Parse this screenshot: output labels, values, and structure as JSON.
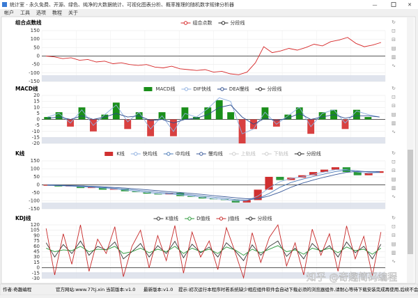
{
  "window": {
    "title": "统计室 - 永久免费、开源、绿色、纯净的大数据统计、可视化图表分析、概率推理的随机数字规律分析器",
    "menu": [
      "帐户",
      "工具",
      "选项",
      "教程",
      "关于"
    ]
  },
  "chart_data": [
    {
      "type": "line",
      "title": "组合点数线",
      "ylim": [
        -150,
        150
      ],
      "yticks": [
        150,
        100,
        50,
        0,
        -50,
        -100,
        -150
      ],
      "series": [
        {
          "name": "组合点数",
          "type": "line",
          "color": "#d62728",
          "values": [
            0,
            -5,
            -15,
            -10,
            -25,
            -20,
            -35,
            -30,
            -45,
            -40,
            -50,
            -55,
            -50,
            -65,
            -70,
            -60,
            -75,
            -80,
            -85,
            -80,
            -95,
            -90,
            -105,
            -110,
            -95,
            -40,
            55,
            20,
            30,
            45,
            35,
            50,
            70,
            60,
            85,
            95,
            110,
            75,
            55,
            65,
            80
          ]
        },
        {
          "name": "分段线",
          "type": "line",
          "color": "#222222"
        }
      ]
    },
    {
      "type": "macd",
      "title": "MACD线",
      "ylim": [
        -20,
        20
      ],
      "yticks": [
        20,
        15,
        10,
        5,
        0,
        -5,
        -10,
        -15,
        -20
      ],
      "series": [
        {
          "name": "MACD线",
          "type": "bar",
          "color": "#1a8f1a",
          "negative_color": "#d84040",
          "values": [
            2,
            6,
            -6,
            10,
            -10,
            4,
            14,
            -8,
            6,
            -14,
            6,
            -14,
            10,
            2,
            10,
            16,
            6,
            -20,
            -8,
            10,
            -6,
            4,
            10,
            -12,
            6,
            8,
            -8,
            8,
            2,
            0
          ]
        },
        {
          "name": "DIF快线",
          "type": "line",
          "color": "#8fb0e0",
          "values": [
            2,
            5,
            -3,
            8,
            -5,
            4,
            12,
            -2,
            6,
            -8,
            3,
            -10,
            5,
            2,
            9,
            18,
            15,
            -12,
            -8,
            6,
            -4,
            3,
            10,
            -6,
            5,
            8,
            -3,
            7,
            4,
            2
          ]
        },
        {
          "name": "DEA慢线",
          "type": "line",
          "color": "#2a4a8a",
          "values": [
            1,
            2,
            0,
            3,
            0,
            2,
            5,
            2,
            3,
            -1,
            0,
            -3,
            0,
            1,
            4,
            10,
            12,
            2,
            -4,
            1,
            -1,
            1,
            5,
            0,
            2,
            4,
            1,
            3,
            3,
            2
          ]
        },
        {
          "name": "分段线",
          "type": "line",
          "color": "#222222"
        }
      ]
    },
    {
      "type": "candlestick",
      "title": "K线",
      "ylim": [
        -150,
        150
      ],
      "yticks": [
        150,
        100,
        50,
        0,
        -50,
        -100,
        -150
      ],
      "series": [
        {
          "name": "K线",
          "type": "candlestick",
          "color": "#d03030",
          "down_color": "#2a9a3a",
          "open": [
            -5,
            0,
            -10,
            -5,
            -20,
            -15,
            -30,
            -25,
            -40,
            -45,
            -55,
            -60,
            -50,
            -70,
            -75,
            -85,
            -90,
            -95,
            -110,
            -95,
            -30,
            50,
            30,
            45,
            60,
            80,
            95,
            110,
            80,
            60,
            75
          ],
          "close": [
            0,
            -10,
            -5,
            -20,
            -15,
            -30,
            -25,
            -40,
            -45,
            -55,
            -60,
            -50,
            -70,
            -75,
            -85,
            -90,
            -95,
            -110,
            -95,
            -30,
            50,
            30,
            45,
            60,
            80,
            95,
            110,
            80,
            60,
            75,
            85
          ]
        },
        {
          "name": "快均线",
          "type": "line",
          "color": "#8fb0e0",
          "values": [
            -3,
            -5,
            -8,
            -12,
            -15,
            -20,
            -25,
            -32,
            -40,
            -48,
            -55,
            -57,
            -62,
            -70,
            -78,
            -86,
            -92,
            -100,
            -98,
            -70,
            -20,
            20,
            40,
            50,
            65,
            80,
            95,
            95,
            80,
            72,
            78
          ]
        },
        {
          "name": "中均线",
          "type": "line",
          "color": "#4a7ab8",
          "values": [
            -2,
            -4,
            -6,
            -9,
            -12,
            -16,
            -21,
            -27,
            -33,
            -40,
            -47,
            -52,
            -57,
            -63,
            -70,
            -77,
            -84,
            -92,
            -96,
            -85,
            -55,
            -15,
            15,
            35,
            52,
            68,
            83,
            92,
            88,
            80,
            78
          ]
        },
        {
          "name": "慢均线",
          "type": "line",
          "color": "#3a5a9a",
          "values": [
            0,
            -2,
            -4,
            -6,
            -9,
            -12,
            -16,
            -20,
            -25,
            -31,
            -37,
            -43,
            -48,
            -54,
            -60,
            -67,
            -74,
            -81,
            -87,
            -85,
            -70,
            -45,
            -15,
            10,
            30,
            48,
            64,
            78,
            84,
            83,
            82
          ]
        },
        {
          "name": "上轨线",
          "type": "line",
          "color": "#cccccc",
          "hidden": true
        },
        {
          "name": "下轨线",
          "type": "line",
          "color": "#cccccc",
          "hidden": true
        },
        {
          "name": "分段线",
          "type": "line",
          "color": "#222222"
        }
      ]
    },
    {
      "type": "line",
      "title": "KDJ线",
      "ylim": [
        -30,
        120
      ],
      "yticks": [
        120,
        105,
        90,
        75,
        60,
        45,
        30,
        15,
        0,
        -15,
        -30
      ],
      "series": [
        {
          "name": "K值线",
          "type": "line",
          "color": "#333333",
          "values": [
            70,
            30,
            65,
            40,
            75,
            35,
            60,
            50,
            72,
            25,
            45,
            68,
            30,
            62,
            40,
            74,
            28,
            66,
            42,
            58,
            30,
            70,
            48,
            20,
            64,
            35,
            60,
            75,
            32,
            55,
            25,
            68,
            45,
            62,
            30,
            72,
            42,
            60,
            25,
            66
          ]
        },
        {
          "name": "D值线",
          "type": "line",
          "color": "#2a9a3a",
          "values": [
            55,
            45,
            50,
            48,
            60,
            45,
            52,
            50,
            60,
            40,
            45,
            55,
            42,
            52,
            45,
            60,
            40,
            55,
            45,
            52,
            40,
            58,
            50,
            35,
            52,
            42,
            52,
            62,
            45,
            50,
            38,
            55,
            48,
            55,
            42,
            58,
            48,
            52,
            38,
            55
          ]
        },
        {
          "name": "J值线",
          "type": "line",
          "color": "#c62828",
          "values": [
            110,
            -20,
            95,
            10,
            120,
            -10,
            80,
            40,
            115,
            -25,
            60,
            105,
            0,
            90,
            20,
            118,
            -15,
            100,
            30,
            75,
            -5,
            112,
            45,
            -28,
            98,
            15,
            85,
            120,
            5,
            70,
            -20,
            108,
            35,
            95,
            -10,
            117,
            25,
            88,
            -22,
            100
          ]
        },
        {
          "name": "分段线",
          "type": "line",
          "color": "#222222"
        }
      ]
    }
  ],
  "watermark": "知乎 @奇趣简码编程",
  "status": [
    "作者:奇趣编程",
    "官方网站:www.77tj.xin",
    "当前版本:v1.0",
    "最新版本:v1.0",
    "提示:初次运行本程序时若系统缺少相应组件软件会自动下载必须的浏览器组件,请耐心等待下载安装完成再使用,后续不会再自动下载组件。"
  ]
}
